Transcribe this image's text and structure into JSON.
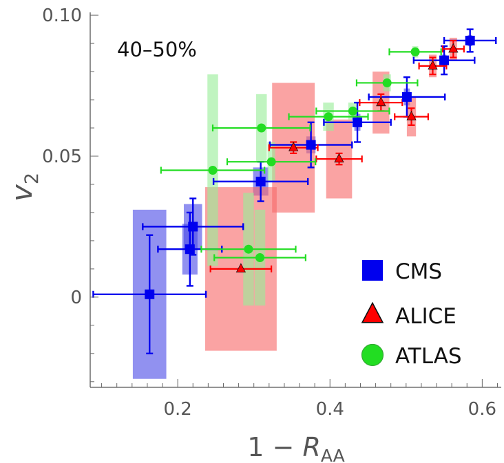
{
  "chart_data": {
    "type": "scatter",
    "annotation": "40–50%",
    "xlabel": {
      "prefix": "1 − ",
      "main": "R",
      "sub": "AA"
    },
    "ylabel": {
      "main": "v",
      "sub": "2"
    },
    "xlim": [
      0.085,
      0.625
    ],
    "ylim": [
      -0.032,
      0.101
    ],
    "xticks": [
      {
        "value": 0.2,
        "label": "0.2"
      },
      {
        "value": 0.4,
        "label": "0.4"
      },
      {
        "value": 0.6,
        "label": "0.6"
      }
    ],
    "yticks": [
      {
        "value": 0.0,
        "label": "0"
      },
      {
        "value": 0.05,
        "label": "0.05"
      },
      {
        "value": 0.1,
        "label": "0.10"
      }
    ],
    "legend": {
      "position": "bottom-right"
    },
    "series": [
      {
        "name": "CMS",
        "marker": "square",
        "color": "#0000ee",
        "sysColor": "#4d4de6",
        "points": [
          {
            "x": 0.163,
            "y": 0.001,
            "xerr": 0.074,
            "yerr": 0.021,
            "sx": 0.022,
            "sy": 0.03
          },
          {
            "x": 0.216,
            "y": 0.017,
            "xerr": 0.042,
            "yerr": 0.013,
            "sx": 0.01,
            "sy": 0.009
          },
          {
            "x": 0.22,
            "y": 0.025,
            "xerr": 0.066,
            "yerr": 0.01,
            "sx": 0.012,
            "sy": 0.008
          },
          {
            "x": 0.309,
            "y": 0.041,
            "xerr": 0.062,
            "yerr": 0.007,
            "sx": 0.01,
            "sy": 0.005
          },
          {
            "x": 0.375,
            "y": 0.054,
            "xerr": 0.054,
            "yerr": 0.008,
            "sx": 0.006,
            "sy": 0.003
          },
          {
            "x": 0.436,
            "y": 0.062,
            "xerr": 0.044,
            "yerr": 0.007,
            "sx": 0.004,
            "sy": 0.003
          },
          {
            "x": 0.501,
            "y": 0.071,
            "xerr": 0.05,
            "yerr": 0.007,
            "sx": 0.004,
            "sy": 0.003
          },
          {
            "x": 0.55,
            "y": 0.084,
            "xerr": 0.04,
            "yerr": 0.005,
            "sx": 0.003,
            "sy": 0.002
          },
          {
            "x": 0.584,
            "y": 0.091,
            "xerr": 0.034,
            "yerr": 0.004,
            "sx": 0.003,
            "sy": 0.002
          }
        ]
      },
      {
        "name": "ALICE",
        "marker": "triangle",
        "color": "#ff0000",
        "sysColor": "#f76a6a",
        "points": [
          {
            "x": 0.283,
            "y": 0.01,
            "xerr": 0.04,
            "yerr": 0.0,
            "sx": 0.047,
            "sy": 0.029
          },
          {
            "x": 0.352,
            "y": 0.053,
            "xerr": 0.032,
            "yerr": 0.002,
            "sx": 0.028,
            "sy": 0.023
          },
          {
            "x": 0.412,
            "y": 0.049,
            "xerr": 0.03,
            "yerr": 0.002,
            "sx": 0.017,
            "sy": 0.014
          },
          {
            "x": 0.467,
            "y": 0.069,
            "xerr": 0.028,
            "yerr": 0.003,
            "sx": 0.011,
            "sy": 0.011
          },
          {
            "x": 0.507,
            "y": 0.064,
            "xerr": 0.022,
            "yerr": 0.003,
            "sx": 0.006,
            "sy": 0.007
          },
          {
            "x": 0.535,
            "y": 0.082,
            "xerr": 0.018,
            "yerr": 0.003,
            "sx": 0.005,
            "sy": 0.004
          },
          {
            "x": 0.562,
            "y": 0.088,
            "xerr": 0.014,
            "yerr": 0.003,
            "sx": 0.005,
            "sy": 0.004
          }
        ]
      },
      {
        "name": "ATLAS",
        "marker": "circle",
        "color": "#22dd22",
        "sysColor": "#99ee99",
        "points": [
          {
            "x": 0.246,
            "y": 0.045,
            "xerr": 0.068,
            "yerr": 0.0,
            "sx": 0.007,
            "sy": 0.034
          },
          {
            "x": 0.293,
            "y": 0.017,
            "xerr": 0.062,
            "yerr": 0.0,
            "sx": 0.007,
            "sy": 0.02
          },
          {
            "x": 0.308,
            "y": 0.014,
            "xerr": 0.06,
            "yerr": 0.0,
            "sx": 0.007,
            "sy": 0.017
          },
          {
            "x": 0.31,
            "y": 0.06,
            "xerr": 0.064,
            "yerr": 0.0,
            "sx": 0.007,
            "sy": 0.012
          },
          {
            "x": 0.323,
            "y": 0.048,
            "xerr": 0.058,
            "yerr": 0.0,
            "sx": 0.005,
            "sy": 0.007
          },
          {
            "x": 0.398,
            "y": 0.064,
            "xerr": 0.052,
            "yerr": 0.0,
            "sx": 0.007,
            "sy": 0.005
          },
          {
            "x": 0.43,
            "y": 0.066,
            "xerr": 0.048,
            "yerr": 0.0,
            "sx": 0.006,
            "sy": 0.003
          },
          {
            "x": 0.475,
            "y": 0.076,
            "xerr": 0.04,
            "yerr": 0.0,
            "sx": 0.005,
            "sy": 0.003
          },
          {
            "x": 0.512,
            "y": 0.087,
            "xerr": 0.034,
            "yerr": 0.0,
            "sx": 0.004,
            "sy": 0.002
          }
        ]
      }
    ]
  }
}
